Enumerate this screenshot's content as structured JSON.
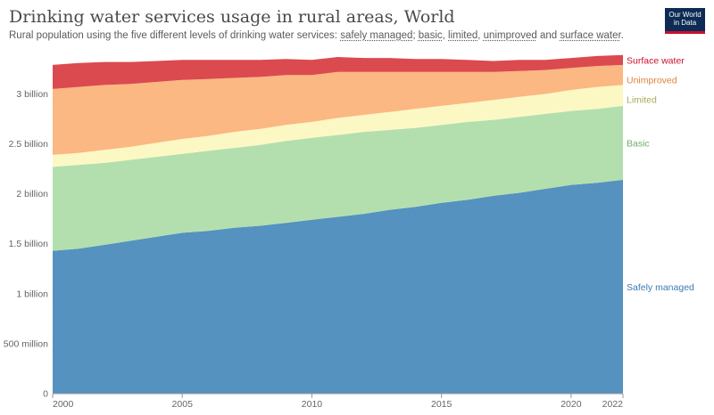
{
  "header": {
    "title": "Drinking water services usage in rural areas, World",
    "subtitle_prefix": "Rural population using the five different levels of drinking water services: ",
    "subtitle_links": [
      "safely managed",
      "basic",
      "limited",
      "unimproved",
      "surface water"
    ],
    "subtitle_seps": [
      "; ",
      ", ",
      ", ",
      " and ",
      "."
    ],
    "logo_line1": "Our World",
    "logo_line2": "in Data"
  },
  "colors": {
    "safely_managed": "#5592c0",
    "basic": "#b3dfaf",
    "limited": "#fcf8c4",
    "unimproved": "#fbb882",
    "surface_water": "#db4a4f"
  },
  "chart_data": {
    "type": "area",
    "stacked": true,
    "x": [
      2000,
      2001,
      2002,
      2003,
      2004,
      2005,
      2006,
      2007,
      2008,
      2009,
      2010,
      2011,
      2012,
      2013,
      2014,
      2015,
      2016,
      2017,
      2018,
      2019,
      2020,
      2021,
      2022
    ],
    "x_ticks": [
      2000,
      2005,
      2010,
      2015,
      2020,
      2022
    ],
    "y_ticks": [
      {
        "value": 0,
        "label": "0"
      },
      {
        "value": 0.5,
        "label": "500 million"
      },
      {
        "value": 1.0,
        "label": "1 billion"
      },
      {
        "value": 1.5,
        "label": "1.5 billion"
      },
      {
        "value": 2.0,
        "label": "2 billion"
      },
      {
        "value": 2.5,
        "label": "2.5 billion"
      },
      {
        "value": 3.0,
        "label": "3 billion"
      }
    ],
    "ylim": [
      0,
      3.45
    ],
    "y_unit": "billion",
    "series": [
      {
        "name": "Safely managed",
        "key": "safely_managed",
        "values": [
          1.43,
          1.45,
          1.49,
          1.53,
          1.57,
          1.61,
          1.63,
          1.66,
          1.68,
          1.71,
          1.74,
          1.77,
          1.8,
          1.84,
          1.87,
          1.91,
          1.94,
          1.98,
          2.01,
          2.05,
          2.09,
          2.11,
          2.14
        ]
      },
      {
        "name": "Basic",
        "key": "basic",
        "values": [
          0.84,
          0.84,
          0.82,
          0.81,
          0.8,
          0.79,
          0.8,
          0.8,
          0.81,
          0.82,
          0.82,
          0.82,
          0.82,
          0.8,
          0.79,
          0.78,
          0.78,
          0.76,
          0.76,
          0.75,
          0.74,
          0.74,
          0.74
        ]
      },
      {
        "name": "Limited",
        "key": "limited",
        "values": [
          0.12,
          0.12,
          0.13,
          0.13,
          0.14,
          0.15,
          0.15,
          0.16,
          0.16,
          0.16,
          0.16,
          0.17,
          0.17,
          0.18,
          0.19,
          0.19,
          0.19,
          0.2,
          0.2,
          0.2,
          0.21,
          0.22,
          0.21
        ]
      },
      {
        "name": "Unimproved",
        "key": "unimproved",
        "values": [
          0.66,
          0.66,
          0.65,
          0.63,
          0.61,
          0.59,
          0.57,
          0.54,
          0.52,
          0.5,
          0.47,
          0.46,
          0.43,
          0.4,
          0.37,
          0.34,
          0.31,
          0.28,
          0.26,
          0.24,
          0.22,
          0.21,
          0.2
        ]
      },
      {
        "name": "Surface water",
        "key": "surface_water",
        "values": [
          0.24,
          0.24,
          0.23,
          0.22,
          0.21,
          0.2,
          0.19,
          0.18,
          0.17,
          0.16,
          0.15,
          0.15,
          0.14,
          0.14,
          0.13,
          0.13,
          0.12,
          0.11,
          0.11,
          0.1,
          0.1,
          0.1,
          0.1
        ]
      }
    ]
  }
}
